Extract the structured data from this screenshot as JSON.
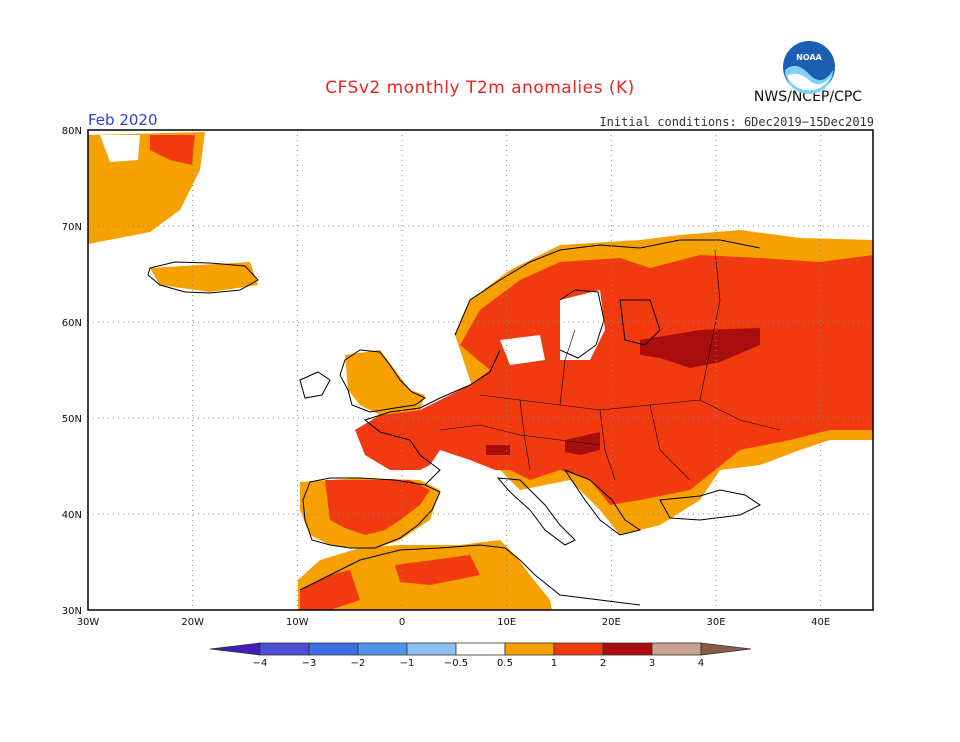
{
  "title": "CFSv2 monthly T2m anomalies (K)",
  "month": "Feb 2020",
  "initial_conditions": "Initial conditions: 6Dec2019−15Dec2019",
  "agency": "NWS/NCEP/CPC",
  "logo_text": "NOAA",
  "axes": {
    "lat_labels": [
      "80N",
      "70N",
      "60N",
      "50N",
      "40N",
      "30N"
    ],
    "lon_labels": [
      "30W",
      "20W",
      "10W",
      "0",
      "10E",
      "20E",
      "30E",
      "40E"
    ],
    "lat_values": [
      80,
      70,
      60,
      50,
      40,
      30
    ],
    "lon_values": [
      -30,
      -20,
      -10,
      0,
      10,
      20,
      30,
      40
    ],
    "lon_range": [
      -30,
      45
    ],
    "lat_range": [
      30,
      80
    ]
  },
  "colorbar": {
    "labels": [
      "−4",
      "−3",
      "−2",
      "−1",
      "−0.5",
      "0.5",
      "1",
      "2",
      "3",
      "4"
    ],
    "colors": [
      "#3f1fb5",
      "#4a4fd6",
      "#3a6fe0",
      "#4f95eb",
      "#8cc0f5",
      "#ffffff",
      "#f6a100",
      "#f13a10",
      "#a80e0e",
      "#c9a294",
      "#8c5a48"
    ]
  }
}
